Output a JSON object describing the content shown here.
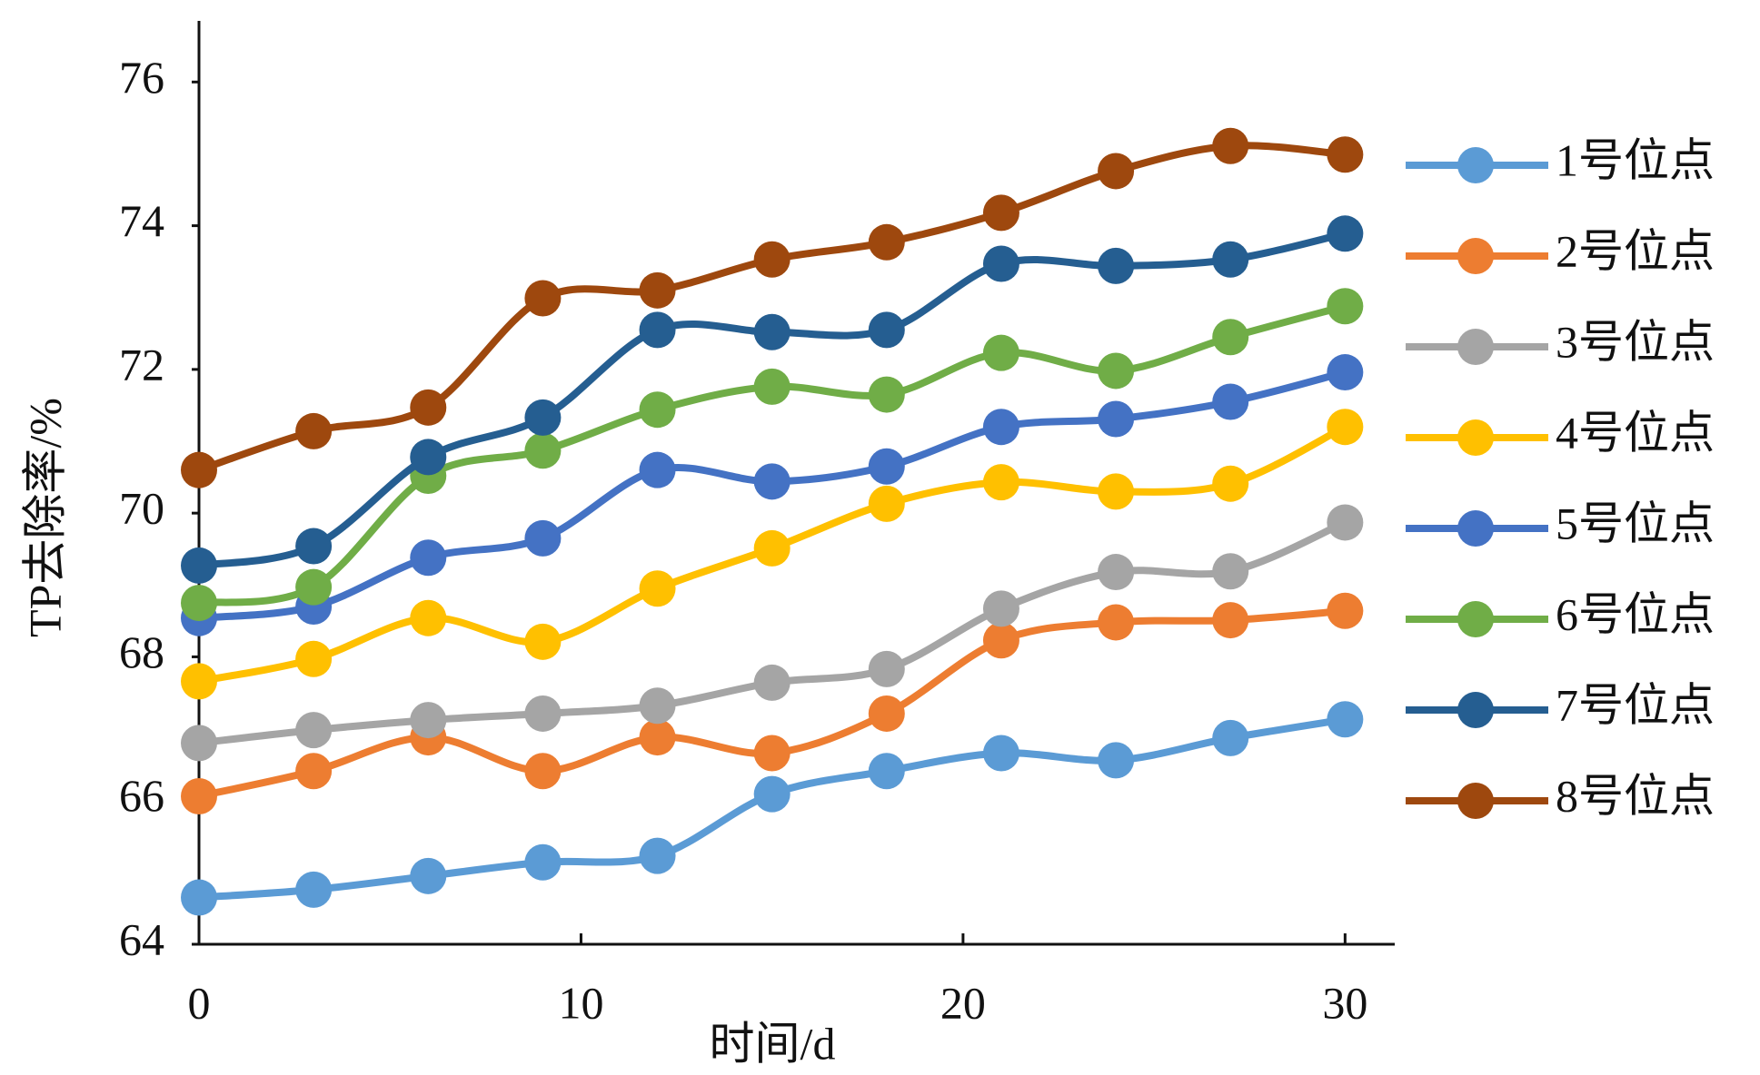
{
  "chart_data": {
    "type": "line",
    "xlabel": "时间/d",
    "ylabel": "TP去除率/%",
    "x": [
      0,
      3,
      6,
      9,
      12,
      15,
      18,
      21,
      24,
      27,
      30
    ],
    "xlim": [
      0,
      31.3
    ],
    "xticks": [
      0,
      10,
      20,
      30
    ],
    "ylim": [
      64,
      76.8
    ],
    "yticks": [
      64,
      66,
      68,
      70,
      72,
      74,
      76
    ],
    "legend": "right",
    "series": [
      {
        "name": "1号位点",
        "color": "#5b9bd5",
        "values": [
          64.65,
          64.76,
          64.95,
          65.14,
          65.23,
          66.09,
          66.41,
          66.66,
          66.56,
          66.87,
          67.13
        ]
      },
      {
        "name": "2号位点",
        "color": "#ed7d31",
        "values": [
          66.06,
          66.41,
          66.88,
          66.41,
          66.88,
          66.66,
          67.21,
          68.23,
          68.48,
          68.51,
          68.64
        ]
      },
      {
        "name": "3号位点",
        "color": "#a5a5a5",
        "values": [
          66.8,
          66.98,
          67.12,
          67.21,
          67.32,
          67.64,
          67.83,
          68.67,
          69.18,
          69.19,
          69.87
        ]
      },
      {
        "name": "4号位点",
        "color": "#ffc000",
        "values": [
          67.66,
          67.97,
          68.54,
          68.21,
          68.95,
          69.51,
          70.13,
          70.43,
          70.3,
          70.41,
          71.2
        ]
      },
      {
        "name": "5号位点",
        "color": "#4472c4",
        "values": [
          68.54,
          68.7,
          69.38,
          69.65,
          70.6,
          70.44,
          70.65,
          71.2,
          71.31,
          71.55,
          71.96
        ]
      },
      {
        "name": "6号位点",
        "color": "#70ad47",
        "values": [
          68.75,
          68.97,
          70.52,
          70.87,
          71.44,
          71.76,
          71.65,
          72.23,
          71.98,
          72.45,
          72.88
        ]
      },
      {
        "name": "7号位点",
        "color": "#255e91",
        "values": [
          69.27,
          69.54,
          70.78,
          71.33,
          72.55,
          72.52,
          72.55,
          73.47,
          73.44,
          73.53,
          73.89
        ]
      },
      {
        "name": "8号位点",
        "color": "#9e480e",
        "values": [
          70.6,
          71.14,
          71.47,
          72.99,
          73.1,
          73.53,
          73.77,
          74.18,
          74.76,
          75.11,
          74.99
        ]
      }
    ]
  }
}
